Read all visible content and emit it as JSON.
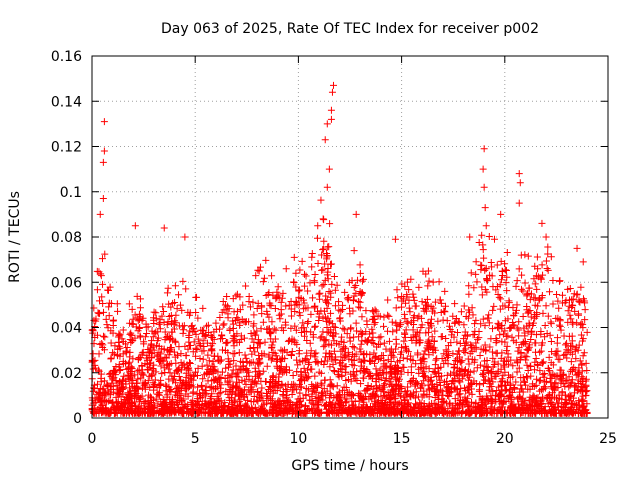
{
  "chart_data": {
    "type": "scatter",
    "title": "Day 063 of 2025, Rate Of TEC Index for receiver p002",
    "xlabel": "GPS time / hours",
    "ylabel": "ROTI / TECUs",
    "xlim": [
      0,
      25
    ],
    "ylim": [
      0,
      0.16
    ],
    "xticks": [
      0,
      5,
      10,
      15,
      20,
      25
    ],
    "yticks": [
      0,
      0.02,
      0.04,
      0.06,
      0.08,
      0.1,
      0.12,
      0.14,
      0.16
    ],
    "xtick_labels": [
      "0",
      "5",
      "10",
      "15",
      "20",
      "25"
    ],
    "ytick_labels": [
      "0",
      "0.02",
      "0.04",
      "0.06",
      "0.08",
      "0.1",
      "0.12",
      "0.14",
      "0.16"
    ],
    "grid": true,
    "marker": "+",
    "color": "#ff0000",
    "x_range_of_data": [
      0,
      24
    ],
    "envelope": {
      "hours": [
        0,
        0.5,
        1,
        1.5,
        2,
        2.5,
        3,
        3.5,
        4,
        4.5,
        5,
        5.5,
        6,
        6.5,
        7,
        7.5,
        8,
        8.5,
        9,
        9.5,
        10,
        10.5,
        11,
        11.5,
        12,
        12.5,
        13,
        13.5,
        14,
        14.5,
        15,
        15.5,
        16,
        16.5,
        17,
        17.5,
        18,
        18.5,
        19,
        19.5,
        20,
        20.5,
        21,
        21.5,
        22,
        22.5,
        23,
        23.5,
        24
      ],
      "typical_max": [
        0.04,
        0.075,
        0.05,
        0.04,
        0.045,
        0.05,
        0.04,
        0.055,
        0.055,
        0.05,
        0.05,
        0.045,
        0.04,
        0.05,
        0.05,
        0.055,
        0.06,
        0.06,
        0.055,
        0.06,
        0.065,
        0.06,
        0.085,
        0.075,
        0.05,
        0.055,
        0.06,
        0.05,
        0.045,
        0.045,
        0.06,
        0.055,
        0.055,
        0.06,
        0.055,
        0.045,
        0.045,
        0.06,
        0.08,
        0.065,
        0.07,
        0.06,
        0.065,
        0.06,
        0.075,
        0.055,
        0.05,
        0.06,
        0.045
      ]
    },
    "notable_peaks": [
      {
        "x": 0.6,
        "y": 0.131
      },
      {
        "x": 0.6,
        "y": 0.118
      },
      {
        "x": 0.55,
        "y": 0.113
      },
      {
        "x": 0.55,
        "y": 0.097
      },
      {
        "x": 0.4,
        "y": 0.09
      },
      {
        "x": 2.1,
        "y": 0.085
      },
      {
        "x": 3.5,
        "y": 0.084
      },
      {
        "x": 4.5,
        "y": 0.08
      },
      {
        "x": 8.1,
        "y": 0.065
      },
      {
        "x": 9.8,
        "y": 0.071
      },
      {
        "x": 11.3,
        "y": 0.123
      },
      {
        "x": 11.4,
        "y": 0.13
      },
      {
        "x": 11.6,
        "y": 0.136
      },
      {
        "x": 11.7,
        "y": 0.147
      },
      {
        "x": 11.65,
        "y": 0.144
      },
      {
        "x": 11.6,
        "y": 0.132
      },
      {
        "x": 11.5,
        "y": 0.11
      },
      {
        "x": 11.4,
        "y": 0.102
      },
      {
        "x": 11.2,
        "y": 0.088
      },
      {
        "x": 12.8,
        "y": 0.09
      },
      {
        "x": 12.7,
        "y": 0.074
      },
      {
        "x": 14.7,
        "y": 0.079
      },
      {
        "x": 16.3,
        "y": 0.065
      },
      {
        "x": 18.3,
        "y": 0.08
      },
      {
        "x": 19.0,
        "y": 0.119
      },
      {
        "x": 18.95,
        "y": 0.11
      },
      {
        "x": 19.0,
        "y": 0.102
      },
      {
        "x": 19.05,
        "y": 0.093
      },
      {
        "x": 19.1,
        "y": 0.085
      },
      {
        "x": 19.5,
        "y": 0.079
      },
      {
        "x": 19.8,
        "y": 0.09
      },
      {
        "x": 20.7,
        "y": 0.108
      },
      {
        "x": 20.75,
        "y": 0.104
      },
      {
        "x": 20.7,
        "y": 0.095
      },
      {
        "x": 20.8,
        "y": 0.072
      },
      {
        "x": 21.8,
        "y": 0.086
      },
      {
        "x": 22.0,
        "y": 0.08
      },
      {
        "x": 23.5,
        "y": 0.075
      },
      {
        "x": 23.8,
        "y": 0.069
      }
    ]
  }
}
